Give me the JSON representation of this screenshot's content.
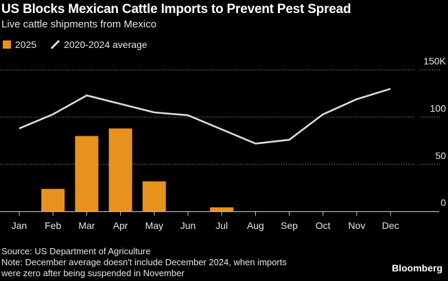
{
  "title": "US Blocks Mexican Cattle Imports to Prevent Pest Spread",
  "subtitle": "Live cattle shipments from Mexico",
  "source": "Source: US Department of Agriculture",
  "note_line1": "Note: December average doesn't include December 2024, when imports",
  "note_line2": "were zero after being suspended in November",
  "brand": "Bloomberg",
  "colors": {
    "bar": "#e8921e",
    "line": "#dddddd",
    "grid": "#888888",
    "background": "#000000"
  },
  "chart_data": {
    "type": "bar",
    "categories": [
      "Jan",
      "Feb",
      "Mar",
      "Apr",
      "May",
      "Jun",
      "Jul",
      "Aug",
      "Sep",
      "Oct",
      "Nov",
      "Dec"
    ],
    "series": [
      {
        "name": "2025",
        "type": "bar",
        "values": [
          null,
          24,
          80,
          88,
          32,
          null,
          4.5,
          null,
          null,
          null,
          null,
          null
        ]
      },
      {
        "name": "2020-2024 average",
        "type": "line",
        "values": [
          88,
          103,
          123,
          114,
          105,
          102,
          87,
          72,
          76,
          103,
          119,
          130
        ]
      }
    ],
    "yticks": [
      "0",
      "50",
      "100",
      "150K"
    ],
    "yticks_values": [
      0,
      50,
      100,
      150
    ],
    "ylim": [
      0,
      150
    ],
    "y_axis_side": "right",
    "grid": true,
    "legend_placement": "top-left"
  }
}
